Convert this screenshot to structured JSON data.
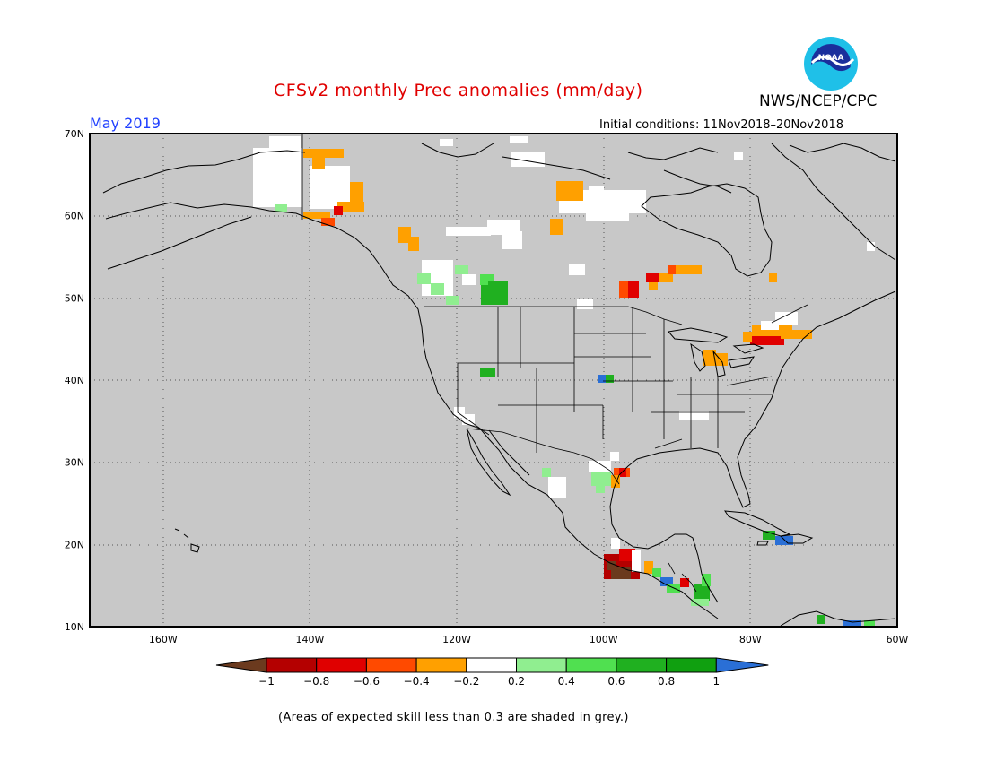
{
  "header": {
    "title": "CFSv2 monthly Prec anomalies (mm/day)",
    "agency": "NWS/NCEP/CPC",
    "period": "May 2019",
    "initial_conditions": "Initial conditions: 11Nov2018–20Nov2018"
  },
  "logo": {
    "icon": "noaa-logo-icon",
    "text": "NOAA"
  },
  "map": {
    "projection": "cylindrical",
    "lon_range": [
      -170,
      -60
    ],
    "lat_range": [
      10,
      70
    ],
    "background": "#c8c8c8",
    "grid": "dotted",
    "lat_labels": [
      "70N",
      "60N",
      "50N",
      "40N",
      "30N",
      "20N",
      "10N"
    ],
    "lon_labels": [
      "160W",
      "140W",
      "120W",
      "100W",
      "80W",
      "60W"
    ]
  },
  "colorbar": {
    "tick_labels": [
      "−1",
      "−0.8",
      "−0.6",
      "−0.4",
      "−0.2",
      "0.2",
      "0.4",
      "0.6",
      "0.8",
      "1"
    ],
    "colors": [
      "#6b3a1e",
      "#b40000",
      "#e00000",
      "#ff4a00",
      "#ffa000",
      "#ffffff",
      "#90ee90",
      "#50e050",
      "#20b020",
      "#10a010",
      "#2a6fd6"
    ]
  },
  "footnote": "(Areas of expected skill less than 0.3 are shaded in grey.)"
}
